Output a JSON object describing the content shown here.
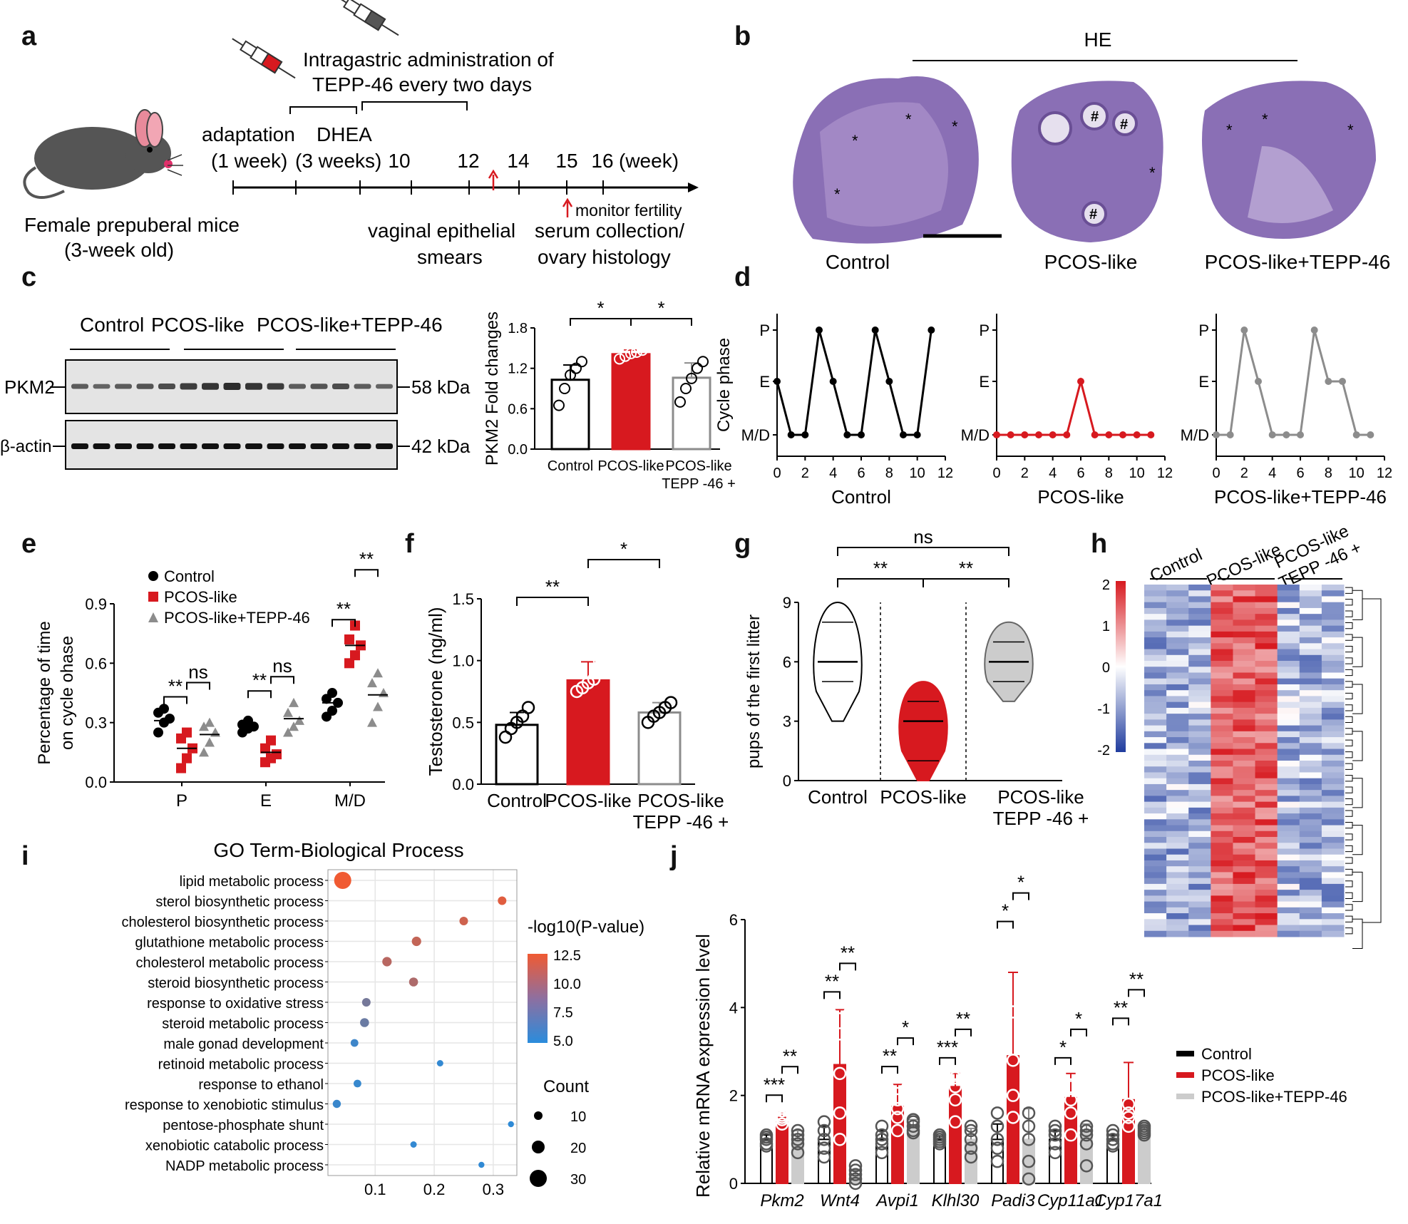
{
  "panel_labels": {
    "a": "a",
    "b": "b",
    "c": "c",
    "d": "d",
    "e": "e",
    "f": "f",
    "g": "g",
    "h": "h",
    "i": "i",
    "j": "j"
  },
  "panel_a": {
    "injection_line1": "Intragastric administration of",
    "injection_line2": "TEPP-46 every two days",
    "adaptation": "adaptation",
    "adaptation_dur": "(1 week)",
    "dhea": "DHEA",
    "dhea_dur": "(3 weeks)",
    "week_ticks": [
      "10",
      "12",
      "14",
      "15",
      "16"
    ],
    "week_unit": "(week)",
    "monitor": "monitor fertility",
    "smears_line1": "vaginal epithelial",
    "smears_line2": "smears",
    "serum_line1": "serum collection/",
    "serum_line2": "ovary histology",
    "mouse_line1": "Female prepuberal mice",
    "mouse_line2": "(3-week old)"
  },
  "panel_b": {
    "title": "HE",
    "groups": [
      "Control",
      "PCOS-like",
      "PCOS-like+TEPP-46"
    ],
    "markers": {
      "star": "*",
      "hash": "#"
    }
  },
  "panel_c": {
    "groups": [
      "Control",
      "PCOS-like",
      "PCOS-like+TEPP-46"
    ],
    "rows": [
      {
        "name": "PKM2",
        "size": "58 kDa"
      },
      {
        "name": "β-actin",
        "size": "42 kDa"
      }
    ]
  },
  "colors": {
    "control": "#000000",
    "pcos": "#d7191f",
    "tepp": "#8c8c8c",
    "tepp_light": "#cccccc"
  },
  "chart_data": [
    {
      "id": "c_bar",
      "type": "bar",
      "ylabel": "PKM2 Fold changes",
      "categories": [
        "Control",
        "PCOS-like",
        "PCOS-like TEPP -46 +"
      ],
      "category_lines": [
        [
          "Control"
        ],
        [
          "PCOS-like"
        ],
        [
          "PCOS-like",
          "TEPP -46 +"
        ]
      ],
      "values": [
        1.03,
        1.41,
        1.06
      ],
      "errors": [
        0.22,
        0.06,
        0.22
      ],
      "points": [
        [
          0.65,
          0.9,
          1.1,
          1.2,
          1.3
        ],
        [
          1.34,
          1.38,
          1.42,
          1.44,
          1.47
        ],
        [
          0.7,
          0.9,
          1.05,
          1.2,
          1.3
        ]
      ],
      "ylim": [
        0,
        1.8
      ],
      "yticks": [
        "0.0",
        "0.6",
        "1.2",
        "1.8"
      ],
      "significance": [
        "*",
        "*"
      ]
    },
    {
      "id": "d_cycles",
      "type": "line",
      "ylabel": "Cycle phase",
      "yticks": [
        "M/D",
        "E",
        "P"
      ],
      "xticks": [
        "0",
        "2",
        "4",
        "6",
        "8",
        "10",
        "12"
      ],
      "xlim": [
        0,
        12
      ],
      "series": [
        {
          "name": "Control",
          "x": [
            0,
            1,
            2,
            3,
            4,
            5,
            6,
            7,
            8,
            9,
            10,
            11
          ],
          "y": [
            1,
            0,
            0,
            2,
            1,
            0,
            0,
            2,
            1,
            0,
            0,
            2
          ]
        },
        {
          "name": "PCOS-like",
          "x": [
            0,
            1,
            2,
            3,
            4,
            5,
            6,
            7,
            8,
            9,
            10,
            11
          ],
          "y": [
            0,
            0,
            0,
            0,
            0,
            0,
            1,
            0,
            0,
            0,
            0,
            0
          ]
        },
        {
          "name": "PCOS-like+TEPP-46",
          "x": [
            0,
            1,
            2,
            3,
            4,
            5,
            6,
            7,
            8,
            9,
            10,
            11
          ],
          "y": [
            0,
            0,
            2,
            1,
            0,
            0,
            0,
            2,
            1,
            1,
            0,
            0
          ]
        }
      ]
    },
    {
      "id": "e_scatter",
      "type": "scatter",
      "ylabel_line1": "Percentage of time",
      "ylabel_line2": "on cycle ohase",
      "categories": [
        "P",
        "E",
        "M/D"
      ],
      "ylim": [
        0,
        0.9
      ],
      "yticks": [
        "0.0",
        "0.3",
        "0.6",
        "0.9"
      ],
      "legend": [
        "Control",
        "PCOS-like",
        "PCOS-like+TEPP-46"
      ],
      "series": [
        {
          "name": "Control",
          "means": [
            0.31,
            0.28,
            0.4
          ],
          "points": [
            [
              0.25,
              0.3,
              0.32,
              0.35,
              0.37
            ],
            [
              0.25,
              0.27,
              0.28,
              0.29,
              0.31
            ],
            [
              0.33,
              0.36,
              0.4,
              0.42,
              0.45
            ]
          ]
        },
        {
          "name": "PCOS-like",
          "means": [
            0.17,
            0.15,
            0.69
          ],
          "points": [
            [
              0.07,
              0.12,
              0.17,
              0.22,
              0.25
            ],
            [
              0.1,
              0.12,
              0.14,
              0.17,
              0.21
            ],
            [
              0.6,
              0.64,
              0.69,
              0.72,
              0.79
            ]
          ]
        },
        {
          "name": "PCOS-like+TEPP-46",
          "means": [
            0.24,
            0.32,
            0.44
          ],
          "points": [
            [
              0.15,
              0.2,
              0.25,
              0.28,
              0.3
            ],
            [
              0.25,
              0.28,
              0.31,
              0.35,
              0.4
            ],
            [
              0.3,
              0.38,
              0.45,
              0.5,
              0.55
            ]
          ]
        }
      ],
      "significance": {
        "P": [
          "**",
          "ns"
        ],
        "E": [
          "**",
          "ns"
        ],
        "M/D": [
          "**",
          "**"
        ]
      }
    },
    {
      "id": "f_bar",
      "type": "bar",
      "ylabel": "Testosterone (ng/ml)",
      "categories": [
        "Control",
        "PCOS-like",
        "PCOS-like TEPP -46 +"
      ],
      "category_lines": [
        [
          "Control"
        ],
        [
          "PCOS-like"
        ],
        [
          "PCOS-like",
          "TEPP -46 +"
        ]
      ],
      "values": [
        0.48,
        0.84,
        0.58
      ],
      "errors": [
        0.1,
        0.15,
        0.08
      ],
      "points": [
        [
          0.38,
          0.45,
          0.5,
          0.55,
          0.62
        ],
        [
          0.75,
          0.78,
          0.82,
          0.85,
          1.0
        ],
        [
          0.5,
          0.55,
          0.58,
          0.62,
          0.66
        ]
      ],
      "ylim": [
        0,
        1.5
      ],
      "yticks": [
        "0.0",
        "0.5",
        "1.0",
        "1.5"
      ],
      "significance": [
        "**",
        "*"
      ]
    },
    {
      "id": "g_violin",
      "type": "violin",
      "ylabel": "pups of the first litter",
      "categories": [
        "Control",
        "PCOS-like",
        "PCOS-like TEPP -46 +"
      ],
      "category_lines": [
        [
          "Control"
        ],
        [
          "PCOS-like"
        ],
        [
          "PCOS-like",
          "TEPP -46 +"
        ]
      ],
      "medians": [
        6,
        3,
        6
      ],
      "quartiles": [
        [
          5,
          8
        ],
        [
          1,
          4
        ],
        [
          5,
          7
        ]
      ],
      "range": [
        [
          3,
          9
        ],
        [
          0,
          5
        ],
        [
          4,
          8
        ]
      ],
      "ylim": [
        0,
        9
      ],
      "yticks": [
        "0",
        "3",
        "6",
        "9"
      ],
      "significance": [
        "**",
        "**",
        "ns"
      ]
    },
    {
      "id": "h_heatmap",
      "type": "heatmap",
      "columns": [
        "Control",
        "PCOS-like",
        "PCOS-like TEPP -46 +"
      ],
      "column_lines": [
        [
          "Control"
        ],
        [
          "PCOS-like"
        ],
        [
          "PCOS-like",
          "TEPP -46 +"
        ]
      ],
      "scale_ticks": [
        "2",
        "1",
        "0",
        "-1",
        "-2"
      ],
      "zlim": [
        -2,
        2
      ]
    },
    {
      "id": "i_go",
      "type": "scatter",
      "title": "GO Term-Biological Process",
      "colorbar_title": "-log10(P-value)",
      "colorbar_ticks": [
        "12.5",
        "10.0",
        "7.5",
        "5.0"
      ],
      "size_title": "Count",
      "size_ticks": [
        "10",
        "20",
        "30"
      ],
      "xticks": [
        "0.1",
        "0.2",
        "0.3"
      ],
      "terms": [
        {
          "label": "lipid metabolic process",
          "x": 0.045,
          "logp": 12.5,
          "count": 30
        },
        {
          "label": "sterol biosynthetic process",
          "x": 0.315,
          "logp": 11.8,
          "count": 10
        },
        {
          "label": "cholesterol biosynthetic process",
          "x": 0.25,
          "logp": 11.0,
          "count": 10
        },
        {
          "label": "glutathione metabolic process",
          "x": 0.17,
          "logp": 10.5,
          "count": 12
        },
        {
          "label": "cholesterol metabolic process",
          "x": 0.12,
          "logp": 10.0,
          "count": 12
        },
        {
          "label": "steroid biosynthetic process",
          "x": 0.165,
          "logp": 9.5,
          "count": 11
        },
        {
          "label": "response to oxidative stress",
          "x": 0.085,
          "logp": 7.0,
          "count": 10
        },
        {
          "label": "steroid metabolic process",
          "x": 0.082,
          "logp": 6.5,
          "count": 11
        },
        {
          "label": "male gonad development",
          "x": 0.065,
          "logp": 4.5,
          "count": 8
        },
        {
          "label": "retinoid metabolic process",
          "x": 0.21,
          "logp": 4.0,
          "count": 5
        },
        {
          "label": "response to ethanol",
          "x": 0.07,
          "logp": 4.2,
          "count": 8
        },
        {
          "label": "response to xenobiotic stimulus",
          "x": 0.035,
          "logp": 4.3,
          "count": 9
        },
        {
          "label": "pentose-phosphate shunt",
          "x": 0.33,
          "logp": 3.8,
          "count": 4
        },
        {
          "label": "xenobiotic catabolic process",
          "x": 0.165,
          "logp": 4.0,
          "count": 5
        },
        {
          "label": "NADP metabolic process",
          "x": 0.28,
          "logp": 3.9,
          "count": 4
        }
      ]
    },
    {
      "id": "j_bar",
      "type": "bar",
      "ylabel": "Relative mRNA expression level",
      "categories": [
        "Pkm2",
        "Wnt4",
        "Avpi1",
        "Klhl30",
        "Padi3",
        "Cyp11a1",
        "Cyp17a1"
      ],
      "ylim": [
        0,
        6
      ],
      "yticks": [
        "0",
        "2",
        "4",
        "6"
      ],
      "legend": [
        "Control",
        "PCOS-like",
        "PCOS-like+TEPP-46"
      ],
      "series": [
        {
          "name": "Control",
          "values": [
            1.0,
            1.0,
            1.0,
            1.0,
            1.0,
            1.0,
            1.0
          ],
          "errors": [
            0.1,
            0.3,
            0.2,
            0.08,
            0.35,
            0.2,
            0.1
          ],
          "points": [
            [
              0.85,
              0.9,
              1.0,
              1.05,
              1.1
            ],
            [
              0.6,
              0.8,
              1.0,
              1.2,
              1.4
            ],
            [
              0.7,
              0.9,
              1.0,
              1.1,
              1.3
            ],
            [
              0.9,
              0.95,
              1.0,
              1.05,
              1.1
            ],
            [
              0.5,
              0.8,
              1.0,
              1.3,
              1.6
            ],
            [
              0.7,
              0.9,
              1.1,
              1.2,
              1.3
            ],
            [
              0.85,
              0.9,
              1.0,
              1.1,
              1.2
            ]
          ]
        },
        {
          "name": "PCOS-like",
          "values": [
            1.5,
            2.7,
            1.75,
            2.2,
            2.9,
            1.95,
            1.9
          ],
          "errors": [
            0.12,
            1.25,
            0.5,
            0.3,
            1.9,
            0.55,
            0.85
          ],
          "points": [
            [
              1.35,
              1.45,
              1.5,
              1.55,
              1.65
            ],
            [
              1.0,
              1.6,
              2.5,
              3.4,
              4.0
            ],
            [
              1.2,
              1.5,
              1.7,
              1.9,
              2.3
            ],
            [
              1.4,
              1.9,
              2.2,
              2.4,
              2.5
            ],
            [
              1.5,
              2.0,
              2.8,
              3.9,
              5.6
            ],
            [
              1.1,
              1.6,
              1.9,
              2.2,
              2.5
            ],
            [
              1.3,
              1.5,
              1.6,
              1.8,
              3.4
            ]
          ]
        },
        {
          "name": "PCOS-like+TEPP-46",
          "values": [
            1.0,
            0.2,
            1.3,
            1.0,
            1.0,
            1.2,
            1.2
          ],
          "errors": [
            0.2,
            0.1,
            0.15,
            0.25,
            0.7,
            0.15,
            0.1
          ],
          "points": [
            [
              0.7,
              0.9,
              1.0,
              1.1,
              1.2
            ],
            [
              0.0,
              0.1,
              0.2,
              0.3,
              0.4
            ],
            [
              1.15,
              1.2,
              1.3,
              1.4,
              1.45
            ],
            [
              0.6,
              0.8,
              1.0,
              1.2,
              1.3
            ],
            [
              0.1,
              0.5,
              1.0,
              1.3,
              1.6
            ],
            [
              0.4,
              0.9,
              1.1,
              1.2,
              1.3
            ],
            [
              1.1,
              1.15,
              1.2,
              1.25,
              1.3
            ]
          ]
        }
      ],
      "significance": [
        [
          "***",
          "**"
        ],
        [
          "**",
          "**"
        ],
        [
          "**",
          "*"
        ],
        [
          "***",
          "**"
        ],
        [
          "*",
          "*"
        ],
        [
          "*",
          "*"
        ],
        [
          "**",
          "**"
        ]
      ]
    }
  ]
}
